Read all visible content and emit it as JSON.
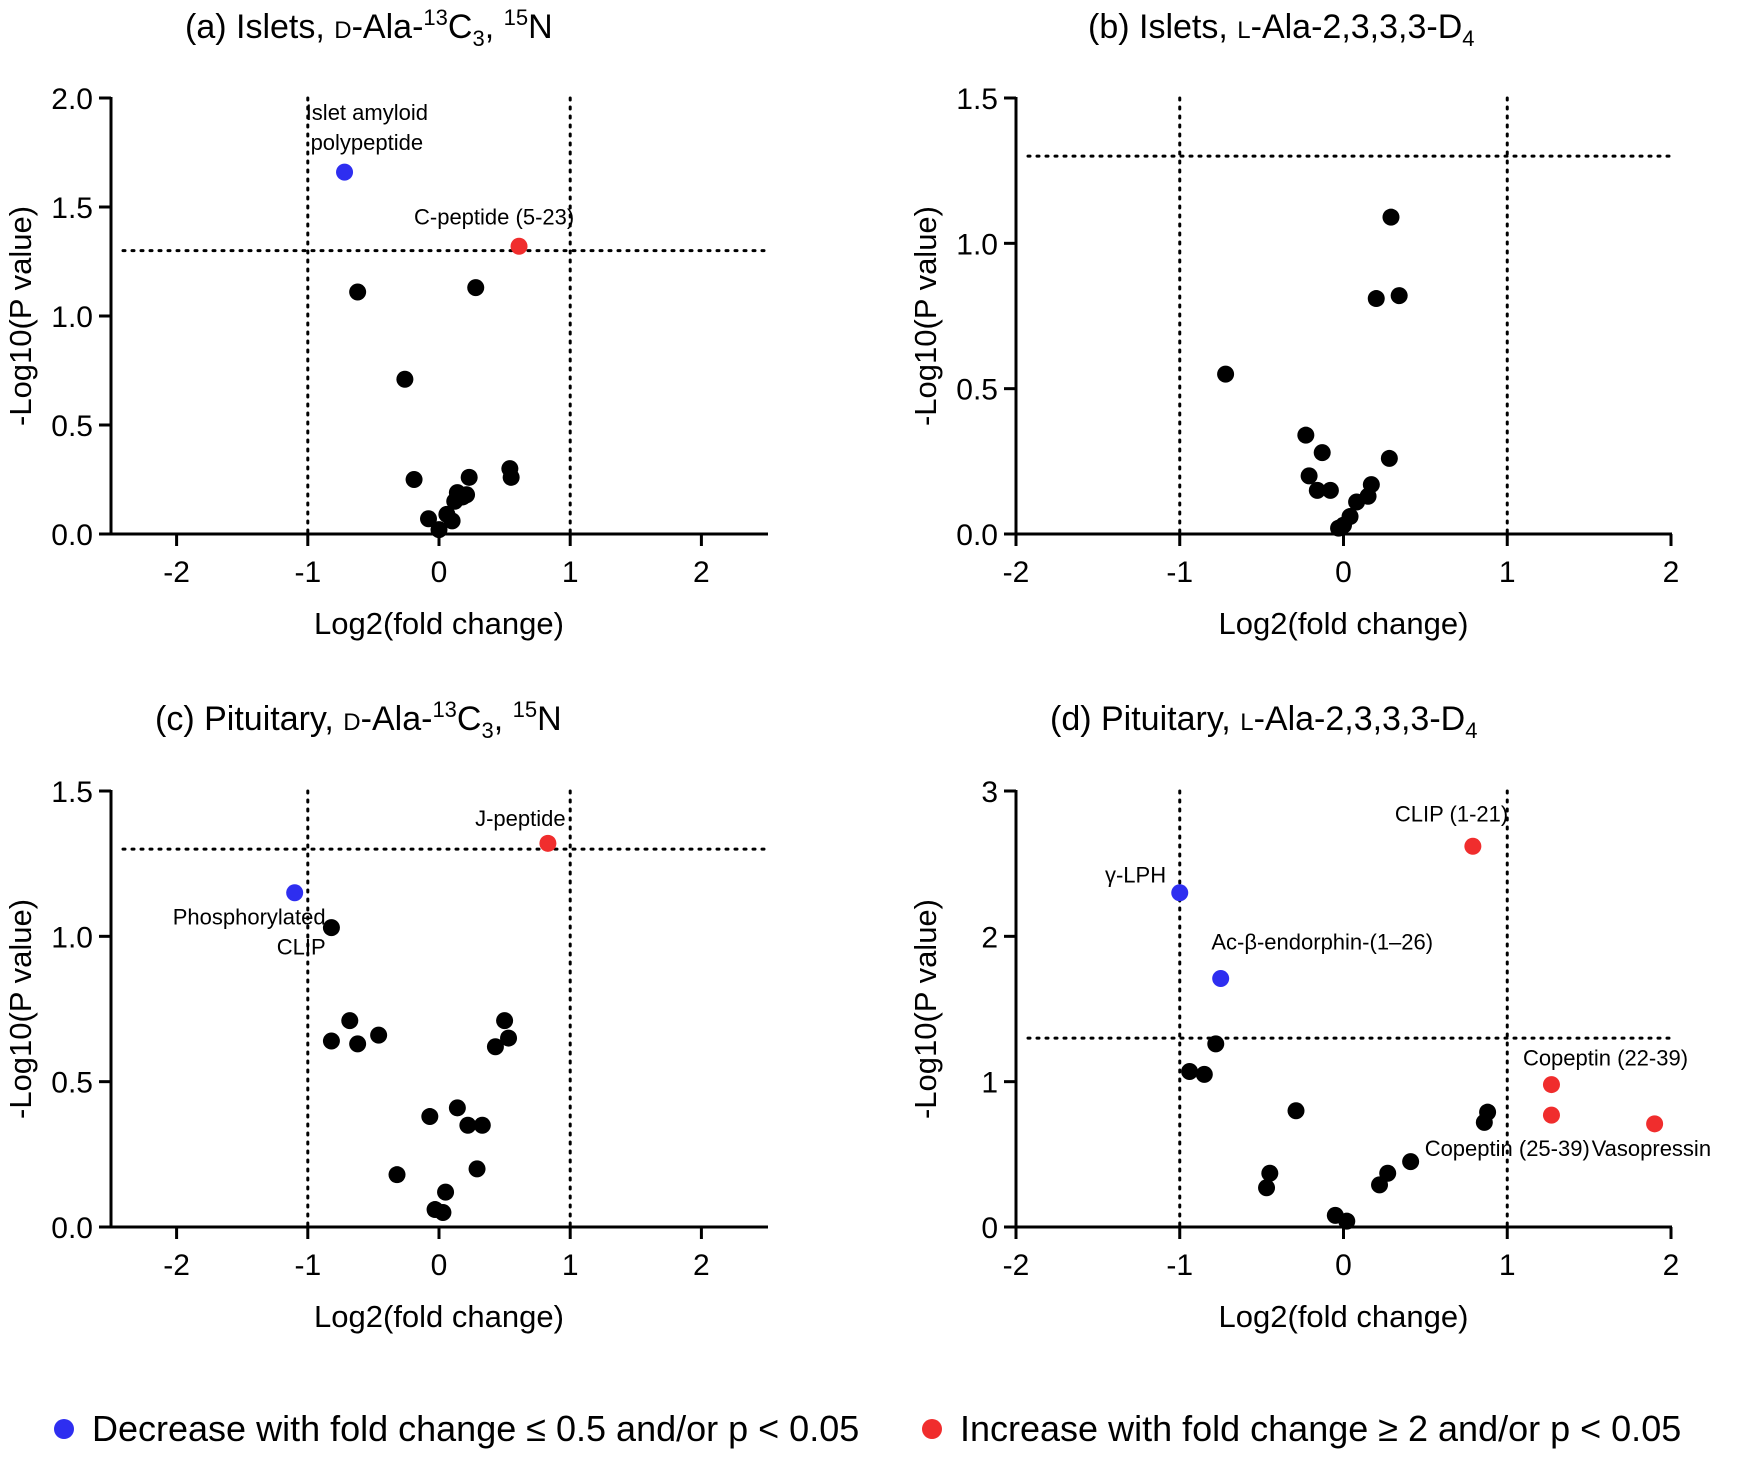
{
  "colors": {
    "decrease": "#2e2ef0",
    "increase": "#f02d2d",
    "neutral": "#000000"
  },
  "legend": {
    "decrease": "Decrease with fold change ≤ 0.5 and/or p < 0.05",
    "increase": "Increase with fold change ≥ 2 and/or p < 0.05"
  },
  "chart_data": [
    {
      "type": "scatter",
      "panel": "(a)",
      "title": {
        "prefix": "Islets, ",
        "sc": "D",
        "main": "-Ala-",
        "sup1": "13",
        "main2": "C",
        "sub": "3",
        "main3": ", ",
        "sup2": "15",
        "main4": "N"
      },
      "xlabel": "Log2(fold change)",
      "ylabel": "-Log10(P value)",
      "xlim": [
        -2.5,
        2.5
      ],
      "xticks": [
        -2,
        -1,
        0,
        1,
        2
      ],
      "xtick_labels": [
        "-2",
        "-1",
        "0",
        "1",
        "2"
      ],
      "ylim": [
        0,
        2.0
      ],
      "yticks": [
        0,
        0.5,
        1.0,
        1.5,
        2.0
      ],
      "ytick_labels": [
        "0.0",
        "0.5",
        "1.0",
        "1.5",
        "2.0"
      ],
      "vlines": [
        -1,
        1
      ],
      "hline": 1.3,
      "points": [
        {
          "x": -0.72,
          "y": 1.66,
          "color": "decrease"
        },
        {
          "x": 0.61,
          "y": 1.32,
          "color": "increase"
        },
        {
          "x": -0.62,
          "y": 1.11,
          "color": "neutral"
        },
        {
          "x": 0.28,
          "y": 1.13,
          "color": "neutral"
        },
        {
          "x": -0.26,
          "y": 0.71,
          "color": "neutral"
        },
        {
          "x": -0.19,
          "y": 0.25,
          "color": "neutral"
        },
        {
          "x": -0.08,
          "y": 0.07,
          "color": "neutral"
        },
        {
          "x": 0.0,
          "y": 0.02,
          "color": "neutral"
        },
        {
          "x": 0.06,
          "y": 0.09,
          "color": "neutral"
        },
        {
          "x": 0.1,
          "y": 0.06,
          "color": "neutral"
        },
        {
          "x": 0.12,
          "y": 0.15,
          "color": "neutral"
        },
        {
          "x": 0.14,
          "y": 0.19,
          "color": "neutral"
        },
        {
          "x": 0.18,
          "y": 0.17,
          "color": "neutral"
        },
        {
          "x": 0.21,
          "y": 0.18,
          "color": "neutral"
        },
        {
          "x": 0.23,
          "y": 0.26,
          "color": "neutral"
        },
        {
          "x": 0.54,
          "y": 0.3,
          "color": "neutral"
        },
        {
          "x": 0.55,
          "y": 0.26,
          "color": "neutral"
        }
      ],
      "annotations": [
        {
          "lines": [
            "Islet amyloid",
            "polypeptide"
          ],
          "x": -0.55,
          "y": 1.9,
          "anchor": "middle"
        },
        {
          "lines": [
            "C-peptide (5-23)"
          ],
          "x": 0.42,
          "y": 1.42,
          "anchor": "middle"
        }
      ]
    },
    {
      "type": "scatter",
      "panel": "(b)",
      "title": {
        "prefix": "Islets, ",
        "sc": "L",
        "main": "-Ala-2,3,3,3-D",
        "sub": "4"
      },
      "xlabel": "Log2(fold change)",
      "ylabel": "-Log10(P value)",
      "xlim": [
        -2,
        2
      ],
      "xticks": [
        -2,
        -1,
        0,
        1,
        2
      ],
      "xtick_labels": [
        "-2",
        "-1",
        "0",
        "1",
        "2"
      ],
      "ylim": [
        0,
        1.5
      ],
      "yticks": [
        0,
        0.5,
        1.0,
        1.5
      ],
      "ytick_labels": [
        "0.0",
        "0.5",
        "1.0",
        "1.5"
      ],
      "vlines": [
        -1,
        1
      ],
      "hline": 1.3,
      "points": [
        {
          "x": -0.72,
          "y": 0.55,
          "color": "neutral"
        },
        {
          "x": -0.23,
          "y": 0.34,
          "color": "neutral"
        },
        {
          "x": -0.13,
          "y": 0.28,
          "color": "neutral"
        },
        {
          "x": -0.21,
          "y": 0.2,
          "color": "neutral"
        },
        {
          "x": -0.16,
          "y": 0.15,
          "color": "neutral"
        },
        {
          "x": -0.08,
          "y": 0.15,
          "color": "neutral"
        },
        {
          "x": -0.03,
          "y": 0.02,
          "color": "neutral"
        },
        {
          "x": 0.0,
          "y": 0.03,
          "color": "neutral"
        },
        {
          "x": 0.04,
          "y": 0.06,
          "color": "neutral"
        },
        {
          "x": 0.08,
          "y": 0.11,
          "color": "neutral"
        },
        {
          "x": 0.15,
          "y": 0.13,
          "color": "neutral"
        },
        {
          "x": 0.17,
          "y": 0.17,
          "color": "neutral"
        },
        {
          "x": 0.2,
          "y": 0.81,
          "color": "neutral"
        },
        {
          "x": 0.34,
          "y": 0.82,
          "color": "neutral"
        },
        {
          "x": 0.29,
          "y": 1.09,
          "color": "neutral"
        },
        {
          "x": 0.28,
          "y": 0.26,
          "color": "neutral"
        }
      ],
      "annotations": []
    },
    {
      "type": "scatter",
      "panel": "(c)",
      "title": {
        "prefix": "Pituitary, ",
        "sc": "D",
        "main": "-Ala-",
        "sup1": "13",
        "main2": "C",
        "sub": "3",
        "main3": ", ",
        "sup2": "15",
        "main4": "N"
      },
      "xlabel": "Log2(fold change)",
      "ylabel": "-Log10(P value)",
      "xlim": [
        -2.5,
        2.5
      ],
      "xticks": [
        -2,
        -1,
        0,
        1,
        2
      ],
      "xtick_labels": [
        "-2",
        "-1",
        "0",
        "1",
        "2"
      ],
      "ylim": [
        0,
        1.5
      ],
      "yticks": [
        0,
        0.5,
        1.0,
        1.5
      ],
      "ytick_labels": [
        "0.0",
        "0.5",
        "1.0",
        "1.5"
      ],
      "vlines": [
        -1,
        1
      ],
      "hline": 1.3,
      "points": [
        {
          "x": -1.1,
          "y": 1.15,
          "color": "decrease"
        },
        {
          "x": 0.83,
          "y": 1.32,
          "color": "increase"
        },
        {
          "x": -0.82,
          "y": 1.03,
          "color": "neutral"
        },
        {
          "x": -0.82,
          "y": 0.64,
          "color": "neutral"
        },
        {
          "x": -0.68,
          "y": 0.71,
          "color": "neutral"
        },
        {
          "x": -0.62,
          "y": 0.63,
          "color": "neutral"
        },
        {
          "x": -0.46,
          "y": 0.66,
          "color": "neutral"
        },
        {
          "x": -0.32,
          "y": 0.18,
          "color": "neutral"
        },
        {
          "x": -0.07,
          "y": 0.38,
          "color": "neutral"
        },
        {
          "x": -0.03,
          "y": 0.06,
          "color": "neutral"
        },
        {
          "x": 0.03,
          "y": 0.05,
          "color": "neutral"
        },
        {
          "x": 0.05,
          "y": 0.12,
          "color": "neutral"
        },
        {
          "x": 0.14,
          "y": 0.41,
          "color": "neutral"
        },
        {
          "x": 0.22,
          "y": 0.35,
          "color": "neutral"
        },
        {
          "x": 0.29,
          "y": 0.2,
          "color": "neutral"
        },
        {
          "x": 0.33,
          "y": 0.35,
          "color": "neutral"
        },
        {
          "x": 0.43,
          "y": 0.62,
          "color": "neutral"
        },
        {
          "x": 0.5,
          "y": 0.71,
          "color": "neutral"
        },
        {
          "x": 0.53,
          "y": 0.65,
          "color": "neutral"
        }
      ],
      "annotations": [
        {
          "lines": [
            "J-peptide"
          ],
          "x": 0.62,
          "y": 1.38,
          "anchor": "middle"
        },
        {
          "lines": [
            "Phosphorylated",
            "CLIP"
          ],
          "x": -1.55,
          "y": 1.04,
          "anchor": "end-center"
        }
      ]
    },
    {
      "type": "scatter",
      "panel": "(d)",
      "title": {
        "prefix": "Pituitary, ",
        "sc": "L",
        "main": "-Ala-2,3,3,3-D",
        "sub": "4"
      },
      "xlabel": "Log2(fold change)",
      "ylabel": "-Log10(P value)",
      "xlim": [
        -2,
        2
      ],
      "xticks": [
        -2,
        -1,
        0,
        1,
        2
      ],
      "xtick_labels": [
        "-2",
        "-1",
        "0",
        "1",
        "2"
      ],
      "ylim": [
        0,
        3
      ],
      "yticks": [
        0,
        1,
        2,
        3
      ],
      "ytick_labels": [
        "0",
        "1",
        "2",
        "3"
      ],
      "vlines": [
        -1,
        1
      ],
      "hline": 1.3,
      "points": [
        {
          "x": -1.0,
          "y": 2.3,
          "color": "decrease"
        },
        {
          "x": -0.75,
          "y": 1.71,
          "color": "decrease"
        },
        {
          "x": 0.79,
          "y": 2.62,
          "color": "increase"
        },
        {
          "x": 1.27,
          "y": 0.98,
          "color": "increase"
        },
        {
          "x": 1.27,
          "y": 0.77,
          "color": "increase"
        },
        {
          "x": 1.9,
          "y": 0.71,
          "color": "increase"
        },
        {
          "x": -0.94,
          "y": 1.07,
          "color": "neutral"
        },
        {
          "x": -0.85,
          "y": 1.05,
          "color": "neutral"
        },
        {
          "x": -0.78,
          "y": 1.26,
          "color": "neutral"
        },
        {
          "x": -0.29,
          "y": 0.8,
          "color": "neutral"
        },
        {
          "x": -0.45,
          "y": 0.37,
          "color": "neutral"
        },
        {
          "x": -0.47,
          "y": 0.27,
          "color": "neutral"
        },
        {
          "x": -0.05,
          "y": 0.08,
          "color": "neutral"
        },
        {
          "x": 0.02,
          "y": 0.04,
          "color": "neutral"
        },
        {
          "x": 0.22,
          "y": 0.29,
          "color": "neutral"
        },
        {
          "x": 0.27,
          "y": 0.37,
          "color": "neutral"
        },
        {
          "x": 0.41,
          "y": 0.45,
          "color": "neutral"
        },
        {
          "x": 0.86,
          "y": 0.72,
          "color": "neutral"
        },
        {
          "x": 0.88,
          "y": 0.79,
          "color": "neutral"
        }
      ],
      "annotations": [
        {
          "lines": [
            "CLIP (1-21)"
          ],
          "x": 0.66,
          "y": 2.79,
          "anchor": "middle"
        },
        {
          "lines": [
            "γ-LPH"
          ],
          "x": -1.27,
          "y": 2.37,
          "anchor": "middle"
        },
        {
          "lines": [
            "Ac-β-endorphin-(1–26)"
          ],
          "x": -0.13,
          "y": 1.91,
          "anchor": "middle"
        },
        {
          "lines": [
            "Copeptin (22-39)"
          ],
          "x": 1.6,
          "y": 1.11,
          "anchor": "middle"
        },
        {
          "lines": [
            "Copeptin (25-39)"
          ],
          "x": 1.0,
          "y": 0.49,
          "anchor": "middle"
        },
        {
          "lines": [
            "Vasopressin"
          ],
          "x": 1.88,
          "y": 0.49,
          "anchor": "middle"
        }
      ]
    }
  ]
}
